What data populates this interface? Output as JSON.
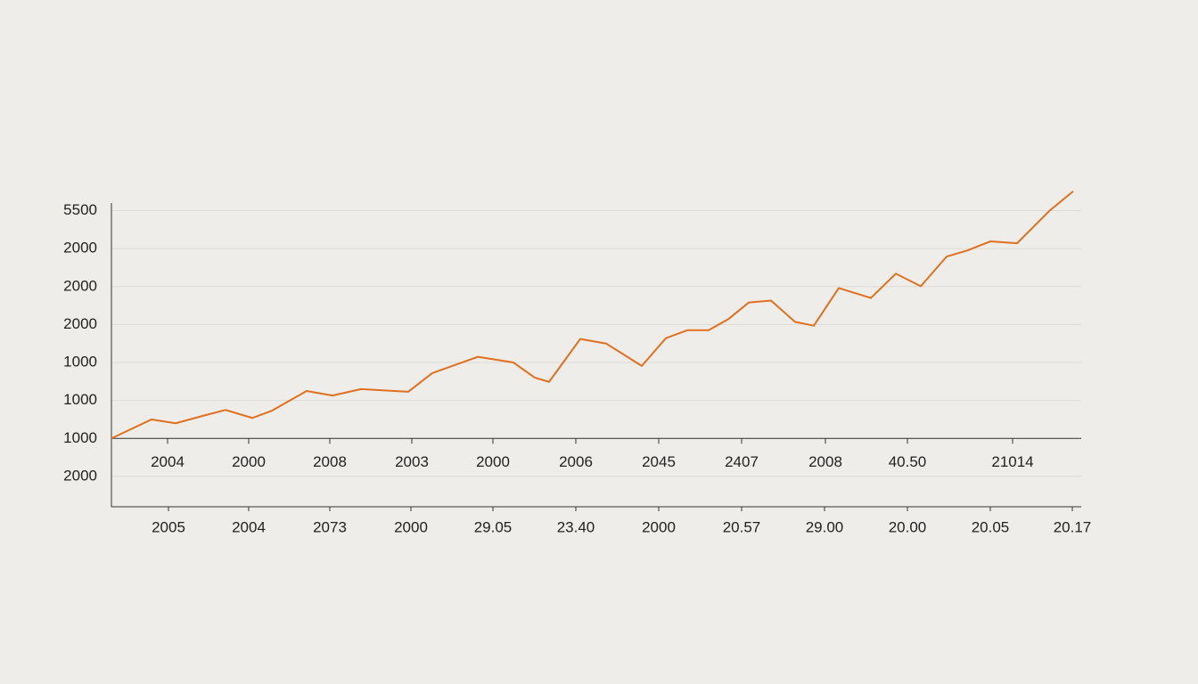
{
  "chart_data": {
    "type": "line",
    "color": "#e0701f",
    "grid": true,
    "xlim": [
      0,
      1088
    ],
    "ylim": [
      -1.8,
      6.2
    ],
    "yticks": [
      {
        "value": 6,
        "label": "5500"
      },
      {
        "value": 5,
        "label": "2000"
      },
      {
        "value": 4,
        "label": "2000"
      },
      {
        "value": 3,
        "label": "2000"
      },
      {
        "value": 2,
        "label": "1000"
      },
      {
        "value": 1,
        "label": "1000"
      },
      {
        "value": 0,
        "label": "1000"
      },
      {
        "value": -1,
        "label": "2000"
      }
    ],
    "xticks": [
      {
        "value": 63,
        "label": "2004"
      },
      {
        "value": 154,
        "label": "2000"
      },
      {
        "value": 245,
        "label": "2008"
      },
      {
        "value": 337,
        "label": "2003"
      },
      {
        "value": 428,
        "label": "2000"
      },
      {
        "value": 521,
        "label": "2006"
      },
      {
        "value": 614,
        "label": "2045"
      },
      {
        "value": 707,
        "label": "2407"
      },
      {
        "value": 801,
        "label": "2008"
      },
      {
        "value": 893,
        "label": "40.50"
      },
      {
        "value": 1011,
        "label": "21014"
      }
    ],
    "x2ticks": [
      {
        "value": 64,
        "label": "2005"
      },
      {
        "value": 154,
        "label": "2004"
      },
      {
        "value": 245,
        "label": "2073"
      },
      {
        "value": 336,
        "label": "2000"
      },
      {
        "value": 428,
        "label": "29.05"
      },
      {
        "value": 521,
        "label": "23.40"
      },
      {
        "value": 614,
        "label": "2000"
      },
      {
        "value": 707,
        "label": "20.57"
      },
      {
        "value": 800,
        "label": "29.00"
      },
      {
        "value": 893,
        "label": "20.00"
      },
      {
        "value": 986,
        "label": "20.05"
      },
      {
        "value": 1078,
        "label": "20.17"
      }
    ],
    "x": [
      0,
      45,
      72,
      105,
      128,
      158,
      180,
      219,
      248,
      280,
      333,
      360,
      411,
      451,
      475,
      491,
      526,
      555,
      595,
      622,
      646,
      670,
      692,
      715,
      740,
      767,
      788,
      816,
      852,
      880,
      908,
      937,
      960,
      986,
      1016,
      1053,
      1079
    ],
    "values": [
      0,
      0.5,
      0.4,
      0.61,
      0.75,
      0.54,
      0.73,
      1.25,
      1.13,
      1.3,
      1.23,
      1.72,
      2.15,
      2.0,
      1.6,
      1.49,
      2.62,
      2.5,
      1.91,
      2.64,
      2.85,
      2.85,
      3.14,
      3.58,
      3.63,
      3.07,
      2.97,
      3.96,
      3.7,
      4.34,
      4.01,
      4.79,
      4.95,
      5.19,
      5.14,
      6.01,
      6.51
    ]
  }
}
